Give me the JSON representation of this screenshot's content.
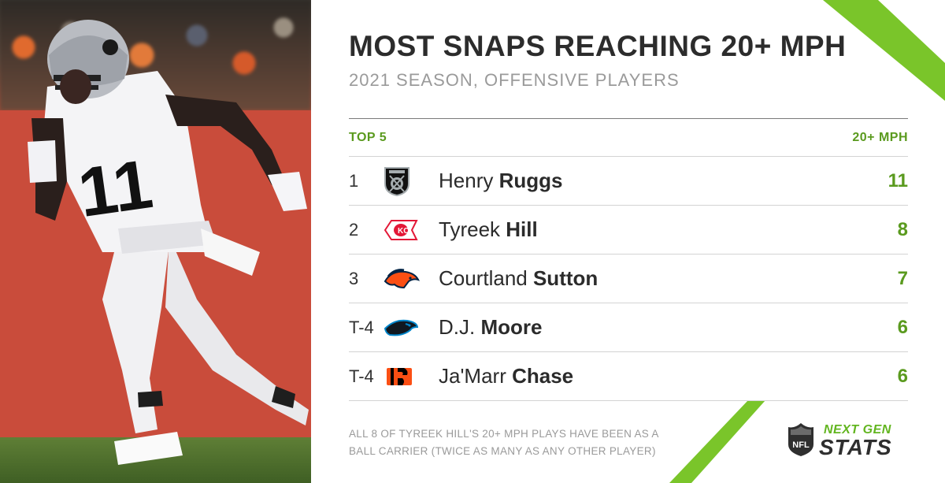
{
  "title": "MOST SNAPS REACHING 20+ MPH",
  "subtitle": "2021 SEASON, OFFENSIVE PLAYERS",
  "table": {
    "col_left": "TOP 5",
    "col_right": "20+ MPH",
    "rows": [
      {
        "rank": "1",
        "team_icon": "raiders-logo-icon",
        "first": "Henry",
        "last": "Ruggs",
        "value": "11"
      },
      {
        "rank": "2",
        "team_icon": "chiefs-logo-icon",
        "first": "Tyreek",
        "last": "Hill",
        "value": "8"
      },
      {
        "rank": "3",
        "team_icon": "broncos-logo-icon",
        "first": "Courtland",
        "last": "Sutton",
        "value": "7"
      },
      {
        "rank": "T-4",
        "team_icon": "panthers-logo-icon",
        "first": "D.J.",
        "last": "Moore",
        "value": "6"
      },
      {
        "rank": "T-4",
        "team_icon": "bengals-logo-icon",
        "first": "Ja'Marr",
        "last": "Chase",
        "value": "6"
      }
    ]
  },
  "note_line1": "ALL 8 OF TYREEK HILL'S 20+ MPH PLAYS HAVE BEEN AS A",
  "note_line2": "BALL CARRIER (TWICE AS MANY AS ANY OTHER PLAYER)",
  "brand": {
    "line1": "NEXT GEN",
    "line2": "STATS",
    "shield_text": "NFL"
  },
  "photo": {
    "jersey_number": "11"
  },
  "colors": {
    "accent": "#5a9a1e",
    "stripe": "#7ac52a",
    "title": "#2c2c2c",
    "subtitle": "#9a9a9a"
  }
}
